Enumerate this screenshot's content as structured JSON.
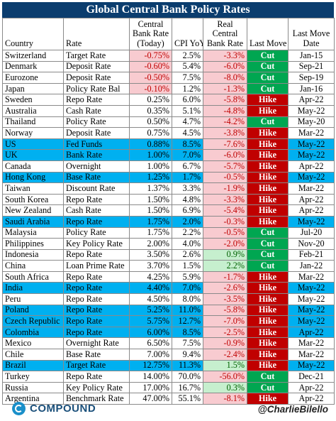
{
  "title": "Global Central Bank Policy Rates",
  "columns": {
    "country": "Country",
    "rate": "Rate",
    "central_bank_rate": "Central Bank Rate (Today)",
    "cpi_yoy": "CPI YoY",
    "real_rate": "Real Central Bank Rate",
    "last_move": "Last Move",
    "last_move_date": "Last Move Date"
  },
  "rows": [
    {
      "country": "Switzerland",
      "rate": "Target Rate",
      "cb": "-0.75%",
      "cpi": "2.5%",
      "real": "-3.3%",
      "move": "Cut",
      "date": "Jan-15",
      "cb_neg": true,
      "highlight": false
    },
    {
      "country": "Denmark",
      "rate": "Deposit Rate",
      "cb": "-0.60%",
      "cpi": "5.4%",
      "real": "-6.0%",
      "move": "Cut",
      "date": "Sep-21",
      "cb_neg": true,
      "highlight": false
    },
    {
      "country": "Eurozone",
      "rate": "Deposit Rate",
      "cb": "-0.50%",
      "cpi": "7.5%",
      "real": "-8.0%",
      "move": "Cut",
      "date": "Sep-19",
      "cb_neg": true,
      "highlight": false
    },
    {
      "country": "Japan",
      "rate": "Policy Rate Bal",
      "cb": "-0.10%",
      "cpi": "1.2%",
      "real": "-1.3%",
      "move": "Cut",
      "date": "Jan-16",
      "cb_neg": true,
      "highlight": false
    },
    {
      "country": "Sweden",
      "rate": "Repo Rate",
      "cb": "0.25%",
      "cpi": "6.0%",
      "real": "-5.8%",
      "move": "Hike",
      "date": "Apr-22",
      "cb_neg": false,
      "highlight": false
    },
    {
      "country": "Australia",
      "rate": "Cash Rate",
      "cb": "0.35%",
      "cpi": "5.1%",
      "real": "-4.8%",
      "move": "Hike",
      "date": "May-22",
      "cb_neg": false,
      "highlight": false
    },
    {
      "country": "Thailand",
      "rate": "Policy Rate",
      "cb": "0.50%",
      "cpi": "4.7%",
      "real": "-4.2%",
      "move": "Cut",
      "date": "May-20",
      "cb_neg": false,
      "highlight": false
    },
    {
      "country": "Norway",
      "rate": "Deposit Rate",
      "cb": "0.75%",
      "cpi": "4.5%",
      "real": "-3.8%",
      "move": "Hike",
      "date": "Mar-22",
      "cb_neg": false,
      "highlight": false
    },
    {
      "country": "US",
      "rate": "Fed Funds",
      "cb": "0.88%",
      "cpi": "8.5%",
      "real": "-7.6%",
      "move": "Hike",
      "date": "May-22",
      "cb_neg": false,
      "highlight": true
    },
    {
      "country": "UK",
      "rate": "Bank Rate",
      "cb": "1.00%",
      "cpi": "7.0%",
      "real": "-6.0%",
      "move": "Hike",
      "date": "May-22",
      "cb_neg": false,
      "highlight": true
    },
    {
      "country": "Canada",
      "rate": "Overnight",
      "cb": "1.00%",
      "cpi": "6.7%",
      "real": "-5.7%",
      "move": "Hike",
      "date": "Apr-22",
      "cb_neg": false,
      "highlight": false
    },
    {
      "country": "Hong Kong",
      "rate": "Base Rate",
      "cb": "1.25%",
      "cpi": "1.7%",
      "real": "-0.5%",
      "move": "Hike",
      "date": "May-22",
      "cb_neg": false,
      "highlight": true
    },
    {
      "country": "Taiwan",
      "rate": "Discount Rate",
      "cb": "1.37%",
      "cpi": "3.3%",
      "real": "-1.9%",
      "move": "Hike",
      "date": "Mar-22",
      "cb_neg": false,
      "highlight": false
    },
    {
      "country": "South Korea",
      "rate": "Repo Rate",
      "cb": "1.50%",
      "cpi": "4.8%",
      "real": "-3.3%",
      "move": "Hike",
      "date": "Apr-22",
      "cb_neg": false,
      "highlight": false
    },
    {
      "country": "New Zealand",
      "rate": "Cash Rate",
      "cb": "1.50%",
      "cpi": "6.9%",
      "real": "-5.4%",
      "move": "Hike",
      "date": "Apr-22",
      "cb_neg": false,
      "highlight": false
    },
    {
      "country": "Saudi Arabia",
      "rate": "Repo Rate",
      "cb": "1.75%",
      "cpi": "2.0%",
      "real": "-0.3%",
      "move": "Hike",
      "date": "May-22",
      "cb_neg": false,
      "highlight": true
    },
    {
      "country": "Malaysia",
      "rate": "Policy Rate",
      "cb": "1.75%",
      "cpi": "2.2%",
      "real": "-0.5%",
      "move": "Cut",
      "date": "Jul-20",
      "cb_neg": false,
      "highlight": false
    },
    {
      "country": "Philippines",
      "rate": "Key Policy Rate",
      "cb": "2.00%",
      "cpi": "4.0%",
      "real": "-2.0%",
      "move": "Cut",
      "date": "Nov-20",
      "cb_neg": false,
      "highlight": false
    },
    {
      "country": "Indonesia",
      "rate": "Repo Rate",
      "cb": "3.50%",
      "cpi": "2.6%",
      "real": "0.9%",
      "move": "Cut",
      "date": "Feb-21",
      "cb_neg": false,
      "highlight": false
    },
    {
      "country": "China",
      "rate": "Loan Prime Rate",
      "cb": "3.70%",
      "cpi": "1.5%",
      "real": "2.2%",
      "move": "Cut",
      "date": "Jan-22",
      "cb_neg": false,
      "highlight": false
    },
    {
      "country": "South Africa",
      "rate": "Repo Rate",
      "cb": "4.25%",
      "cpi": "5.9%",
      "real": "-1.7%",
      "move": "Hike",
      "date": "Mar-22",
      "cb_neg": false,
      "highlight": false
    },
    {
      "country": "India",
      "rate": "Repo Rate",
      "cb": "4.40%",
      "cpi": "7.0%",
      "real": "-2.6%",
      "move": "Hike",
      "date": "May-22",
      "cb_neg": false,
      "highlight": true
    },
    {
      "country": "Peru",
      "rate": "Repo Rate",
      "cb": "4.50%",
      "cpi": "8.0%",
      "real": "-3.5%",
      "move": "Hike",
      "date": "May-22",
      "cb_neg": false,
      "highlight": false
    },
    {
      "country": "Poland",
      "rate": "Repo Rate",
      "cb": "5.25%",
      "cpi": "11.0%",
      "real": "-5.8%",
      "move": "Hike",
      "date": "May-22",
      "cb_neg": false,
      "highlight": true
    },
    {
      "country": "Czech Republic",
      "rate": "Repo Rate",
      "cb": "5.75%",
      "cpi": "12.7%",
      "real": "-7.0%",
      "move": "Hike",
      "date": "May-22",
      "cb_neg": false,
      "highlight": true
    },
    {
      "country": "Colombia",
      "rate": "Repo Rate",
      "cb": "6.00%",
      "cpi": "8.5%",
      "real": "-2.5%",
      "move": "Hike",
      "date": "Apr-22",
      "cb_neg": false,
      "highlight": true
    },
    {
      "country": "Mexico",
      "rate": "Overnight Rate",
      "cb": "6.50%",
      "cpi": "7.5%",
      "real": "-0.9%",
      "move": "Hike",
      "date": "Mar-22",
      "cb_neg": false,
      "highlight": false
    },
    {
      "country": "Chile",
      "rate": "Base Rate",
      "cb": "7.00%",
      "cpi": "9.4%",
      "real": "-2.4%",
      "move": "Hike",
      "date": "Mar-22",
      "cb_neg": false,
      "highlight": false
    },
    {
      "country": "Brazil",
      "rate": "Target Rate",
      "cb": "12.75%",
      "cpi": "11.3%",
      "real": "1.5%",
      "move": "Hike",
      "date": "May-22",
      "cb_neg": false,
      "highlight": true
    },
    {
      "country": "Turkey",
      "rate": "Repo Rate",
      "cb": "14.00%",
      "cpi": "70.0%",
      "real": "-56.0%",
      "move": "Cut",
      "date": "Dec-21",
      "cb_neg": false,
      "highlight": false
    },
    {
      "country": "Russia",
      "rate": "Key Policy Rate",
      "cb": "17.00%",
      "cpi": "16.7%",
      "real": "0.3%",
      "move": "Cut",
      "date": "Apr-22",
      "cb_neg": false,
      "highlight": false
    },
    {
      "country": "Argentina",
      "rate": "Benchmark Rate",
      "cb": "47.00%",
      "cpi": "55.1%",
      "real": "-8.1%",
      "move": "Hike",
      "date": "Apr-22",
      "cb_neg": false,
      "highlight": false
    }
  ],
  "footer": {
    "brand": "COMPOUND",
    "brand_icon": "compound-logo-icon",
    "handle": "@CharlieBilello"
  },
  "colors": {
    "title_bg": "#0b3d6e",
    "highlight_row": "#00b0f0",
    "cut": "#00a651",
    "hike": "#c00000",
    "real_negative_bg": "#f8cbd0",
    "real_positive_bg": "#c6efce",
    "cb_negative_text": "#c00000"
  }
}
